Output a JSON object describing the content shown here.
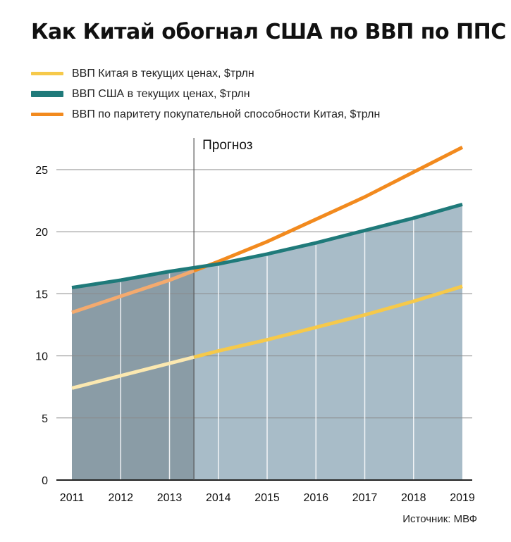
{
  "title": "Как Китай обогнал США по ВВП по ППС",
  "source": "Источник: МВФ",
  "chart_data": {
    "type": "line",
    "x": [
      2011,
      2012,
      2013,
      2014,
      2015,
      2016,
      2017,
      2018,
      2019
    ],
    "xlim": [
      2011,
      2019
    ],
    "ylim": [
      0,
      27
    ],
    "yticks": [
      0,
      5,
      10,
      15,
      20,
      25
    ],
    "grid": true,
    "legend_placement": "top-left",
    "forecast_start": 2013.5,
    "forecast_label": "Прогноз",
    "series": [
      {
        "name": "ВВП Китая в текущих ценах, $трлн",
        "color": "#f6c94a",
        "historical_color": "#fbe8b0",
        "values": [
          7.4,
          8.4,
          9.4,
          10.4,
          11.3,
          12.3,
          13.3,
          14.4,
          15.6
        ]
      },
      {
        "name": "ВВП США в текущих ценах, $трлн",
        "color": "#1f7a7a",
        "fill_color": "#a8bcc8",
        "historical_fill_color": "#8a9ca6",
        "area": true,
        "values": [
          15.5,
          16.1,
          16.8,
          17.4,
          18.2,
          19.1,
          20.1,
          21.1,
          22.2
        ]
      },
      {
        "name": "ВВП по паритету покупательной способности Китая, $трлн",
        "color": "#f28a1e",
        "historical_color": "#f4aa6e",
        "values": [
          13.5,
          14.8,
          16.1,
          17.6,
          19.2,
          21.0,
          22.8,
          24.8,
          26.8
        ]
      }
    ]
  }
}
